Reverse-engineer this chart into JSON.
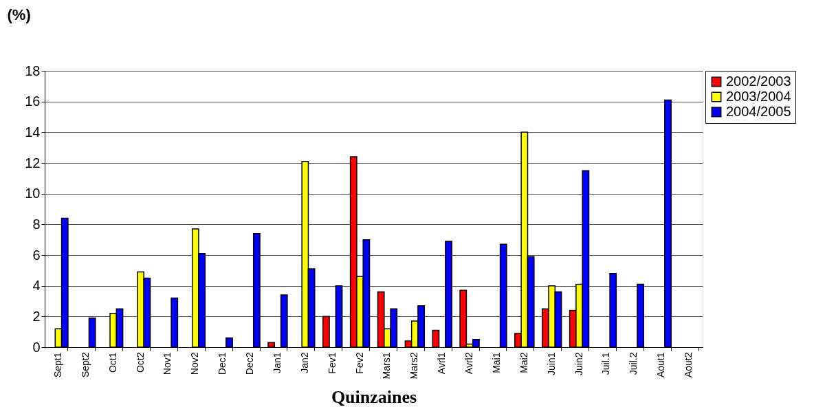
{
  "chart_data": {
    "type": "bar",
    "ylabel": "(%)",
    "xlabel": "Quinzaines",
    "categories": [
      "Sept1",
      "Sept2",
      "Oct1",
      "Oct2",
      "Nov1",
      "Nov2",
      "Dec1",
      "Dec2",
      "Jan1",
      "Jan2",
      "Fev1",
      "Fev2",
      "Mars1",
      "Mars2",
      "Avrl1",
      "Avrl2",
      "Mai1",
      "Mai2",
      "Juin1",
      "Juin2",
      "Juil.1",
      "Juil.2",
      "Aout1",
      "Aout2"
    ],
    "series": [
      {
        "name": "2002/2003",
        "color": "#ff0000",
        "values": [
          null,
          null,
          null,
          null,
          null,
          null,
          null,
          null,
          0.3,
          null,
          2.0,
          12.4,
          3.6,
          0.4,
          1.1,
          3.7,
          null,
          0.9,
          2.5,
          2.4,
          null,
          null,
          null,
          null
        ]
      },
      {
        "name": "2003/2004",
        "color": "#ffff00",
        "values": [
          1.2,
          null,
          2.2,
          4.9,
          null,
          7.7,
          null,
          null,
          null,
          12.1,
          null,
          4.6,
          1.2,
          1.7,
          null,
          0.2,
          null,
          14.0,
          4.0,
          4.1,
          null,
          null,
          null,
          null
        ]
      },
      {
        "name": "2004/2005",
        "color": "#0000ff",
        "values": [
          8.4,
          1.9,
          2.5,
          4.5,
          3.2,
          6.1,
          0.6,
          7.4,
          3.4,
          5.1,
          4.0,
          7.0,
          2.5,
          2.7,
          6.9,
          0.5,
          6.7,
          5.9,
          3.6,
          11.5,
          4.8,
          4.1,
          16.1,
          null
        ]
      }
    ],
    "ylim": [
      0,
      18
    ],
    "yticks": [
      0,
      2,
      4,
      6,
      8,
      10,
      12,
      14,
      16,
      18
    ],
    "grid": "y",
    "legend": "top right"
  }
}
